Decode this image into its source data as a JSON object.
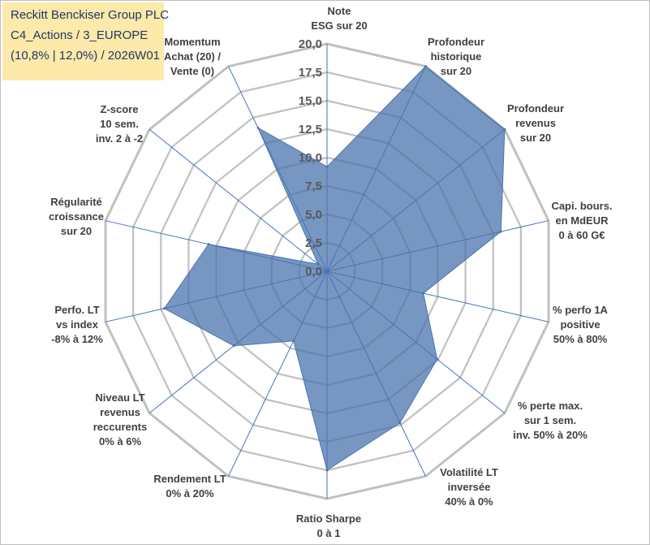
{
  "title": {
    "line1": "Reckitt Benckiser Group PLC",
    "line2": "C4_Actions / 3_EUROPE",
    "line3": "(10,8% | 12,0%) / 2026W01"
  },
  "chart_data": {
    "type": "radar",
    "rmin": 0,
    "rmax": 20,
    "tick_step": 2.5,
    "tick_labels": [
      "0,0",
      "2,5",
      "5,0",
      "7,5",
      "10,0",
      "12,5",
      "15,0",
      "17,5",
      "20,0"
    ],
    "categories": [
      "Note ESG sur 20",
      "Profondeur historique sur 20",
      "Profondeur revenus sur 20",
      "Capi. bours. en MdEUR 0 à 60 G€",
      "% perfo 1A positive 50% à 80%",
      "% perte max. sur 1 sem. inv. 50% à 20%",
      "Volatilité LT inversée 40% à 0%",
      "Ratio Sharpe 0 à 1",
      "Rendement LT 0% à 20%",
      "Niveau LT revenus reccurents 0% à 6%",
      "Perfo. LT vs index -8% à 12%",
      "Régularité croissance sur 20",
      "Z-score 10 sem. inv. 2 à -2",
      "Momentum Achat (20) / Vente (0)"
    ],
    "category_lines": [
      [
        "Note",
        "ESG sur 20"
      ],
      [
        "Profondeur",
        "historique",
        "sur 20"
      ],
      [
        "Profondeur",
        "revenus",
        "sur 20"
      ],
      [
        "Capi. bours.",
        "en MdEUR",
        "0 à 60 G€"
      ],
      [
        "% perfo 1A",
        "positive",
        "50% à 80%"
      ],
      [
        "% perte max.",
        "sur 1 sem.",
        "inv. 50% à 20%"
      ],
      [
        "Volatilité LT",
        "inversée",
        "40% à 0%"
      ],
      [
        "Ratio Sharpe",
        "0 à 1"
      ],
      [
        "Rendement LT",
        "0% à 20%"
      ],
      [
        "Niveau LT",
        "revenus",
        "reccurents",
        "0% à 6%"
      ],
      [
        "Perfo. LT",
        "vs index",
        "-8% à 12%"
      ],
      [
        "Régularité",
        "croissance",
        "sur 20"
      ],
      [
        "Z-score",
        "10 sem.",
        "inv. 2 à -2"
      ],
      [
        "Momentum",
        "Achat (20) /",
        "Vente (0)"
      ]
    ],
    "series": [
      {
        "name": "Reckitt Benckiser Group PLC",
        "values": [
          9.2,
          20,
          20,
          15.7,
          8.7,
          12.4,
          14.8,
          17.5,
          6.8,
          10.5,
          14.7,
          10.7,
          1.0,
          14.0
        ]
      }
    ],
    "colors": {
      "fill": "#4a74ad",
      "fill_opacity": "0.75",
      "spoke": "#4472c4",
      "grid": "#c0c0c0"
    }
  }
}
